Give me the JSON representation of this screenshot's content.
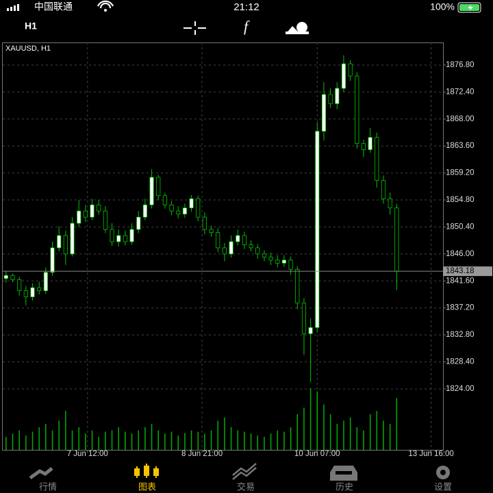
{
  "status_bar": {
    "carrier": "中国联通",
    "time": "21:12",
    "battery": "100%"
  },
  "toolbar": {
    "timeframe": "H1",
    "function_label": "f"
  },
  "chart_data": {
    "type": "candlestick",
    "title": "XAUUSD, H1",
    "xlim": [
      -0.5,
      66
    ],
    "xticks": [
      {
        "value": 12.3,
        "label": "7 Jun 12:00"
      },
      {
        "value": 29.6,
        "label": "8 Jun 21:00"
      },
      {
        "value": 47,
        "label": "10 Jun 07:00"
      },
      {
        "value": 64.2,
        "label": "13 Jun 16:00"
      }
    ],
    "ylim": [
      1814.06,
      1880.48
    ],
    "yticks": [
      {
        "value": 1876.8,
        "label": "1876.80"
      },
      {
        "value": 1872.4,
        "label": "1872.40"
      },
      {
        "value": 1868,
        "label": "1868.00"
      },
      {
        "value": 1863.6,
        "label": "1863.60"
      },
      {
        "value": 1859.2,
        "label": "1859.20"
      },
      {
        "value": 1854.8,
        "label": "1854.80"
      },
      {
        "value": 1850.4,
        "label": "1850.40"
      },
      {
        "value": 1846,
        "label": "1846.00"
      },
      {
        "value": 1841.6,
        "label": "1841.60"
      },
      {
        "value": 1837.2,
        "label": "1837.20"
      },
      {
        "value": 1832.8,
        "label": "1832.80"
      },
      {
        "value": 1828.4,
        "label": "1828.40"
      },
      {
        "value": 1824,
        "label": "1824.00"
      }
    ],
    "grid": true,
    "current_price": 1843.18,
    "up_color": "#ffffff",
    "down_color": "#000000",
    "wick_color": "#00c800",
    "volume_color": "#00b000",
    "open": [
      1842,
      1842.5,
      1841.8,
      1840,
      1839,
      1840.5,
      1840,
      1843,
      1847,
      1849,
      1846,
      1851,
      1853,
      1852,
      1854,
      1853,
      1850,
      1848,
      1849,
      1848,
      1850,
      1852,
      1854,
      1858.5,
      1855.5,
      1854,
      1853,
      1852.5,
      1853.5,
      1855,
      1852,
      1850,
      1849.5,
      1847,
      1846,
      1848,
      1849,
      1847.5,
      1847,
      1846,
      1845.5,
      1845,
      1844.5,
      1845,
      1843.5,
      1838,
      1833,
      1834,
      1866,
      1872,
      1870.5,
      1873,
      1877,
      1875,
      1864,
      1863,
      1865,
      1858,
      1855,
      1853.5
    ],
    "high": [
      1843.2,
      1842.8,
      1842.3,
      1840.8,
      1841.2,
      1841.5,
      1843.8,
      1848,
      1850.5,
      1849.8,
      1852,
      1854.8,
      1854,
      1855,
      1854.8,
      1853.8,
      1851,
      1850,
      1849.8,
      1851,
      1853,
      1855,
      1859.8,
      1858.9,
      1856,
      1854.6,
      1853.8,
      1854.2,
      1855.6,
      1855.5,
      1852.8,
      1850.6,
      1850.2,
      1847.8,
      1849,
      1850,
      1849.6,
      1848.2,
      1847.6,
      1846.6,
      1846.2,
      1845.8,
      1845.8,
      1845.6,
      1844,
      1838.8,
      1835.5,
      1867.5,
      1874,
      1873,
      1874,
      1878.4,
      1877.6,
      1875.6,
      1864.6,
      1866.5,
      1865.8,
      1858.8,
      1856,
      1854.2
    ],
    "low": [
      1841.3,
      1841.4,
      1839.2,
      1837.6,
      1838.4,
      1839.4,
      1839.5,
      1842.4,
      1846.4,
      1844.2,
      1845.6,
      1850.4,
      1851.2,
      1851.5,
      1852.4,
      1849.4,
      1847.3,
      1847.2,
      1847.4,
      1847.5,
      1849.4,
      1851.5,
      1853.4,
      1854.8,
      1853.4,
      1852.3,
      1851.8,
      1851.9,
      1852.9,
      1851.3,
      1849.2,
      1848.8,
      1846.3,
      1844.8,
      1845.4,
      1847.4,
      1846.8,
      1846.4,
      1845.2,
      1844.8,
      1844.2,
      1843.8,
      1843.9,
      1842.6,
      1837,
      1829.5,
      1825.1,
      1833.2,
      1864.5,
      1869.8,
      1869.6,
      1872.4,
      1874.2,
      1863.2,
      1861.8,
      1862.5,
      1856.8,
      1854.2,
      1852.4,
      1840.1
    ],
    "close": [
      1842.5,
      1841.8,
      1840,
      1839,
      1840.5,
      1840,
      1843,
      1847,
      1849,
      1846,
      1851,
      1853,
      1852,
      1854,
      1853,
      1850,
      1848,
      1849,
      1848,
      1850,
      1852,
      1854,
      1858.5,
      1855.5,
      1854,
      1853,
      1852.5,
      1853.5,
      1855,
      1852,
      1850,
      1849.5,
      1847,
      1846,
      1848,
      1849,
      1847.5,
      1847,
      1846,
      1845.5,
      1845,
      1844.5,
      1845,
      1843.5,
      1838,
      1833,
      1834,
      1866,
      1872,
      1870.5,
      1873,
      1877,
      1875,
      1864,
      1863,
      1865,
      1858,
      1855,
      1853.5,
      1843.18
    ],
    "volume": [
      20,
      25,
      30,
      22,
      28,
      35,
      40,
      30,
      45,
      60,
      30,
      35,
      25,
      30,
      20,
      28,
      30,
      35,
      28,
      25,
      30,
      35,
      40,
      30,
      25,
      28,
      22,
      26,
      30,
      28,
      25,
      30,
      45,
      50,
      35,
      30,
      28,
      25,
      22,
      20,
      25,
      30,
      28,
      35,
      55,
      65,
      95,
      90,
      70,
      55,
      40,
      45,
      50,
      35,
      30,
      55,
      60,
      45,
      40,
      80
    ]
  },
  "tab_bar": {
    "tabs": [
      "行情",
      "图表",
      "交易",
      "历史",
      "设置"
    ],
    "active": "图表"
  }
}
